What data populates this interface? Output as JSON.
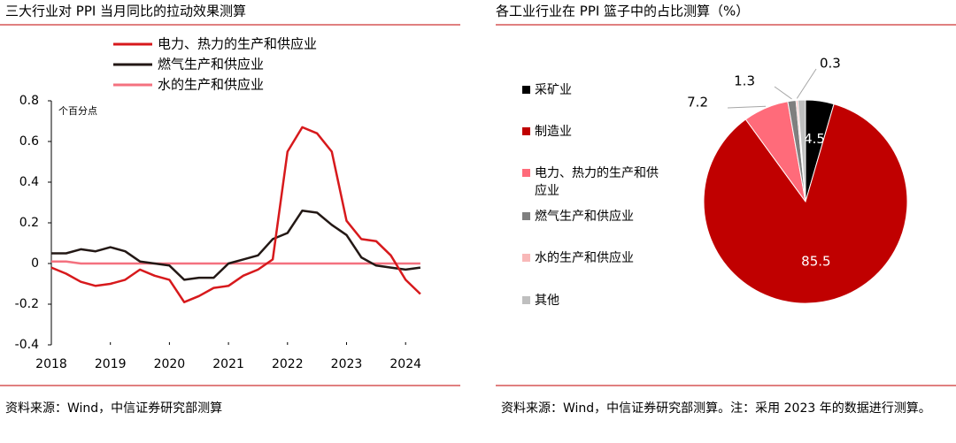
{
  "chart_data": [
    {
      "type": "line",
      "title": "三大行业对 PPI 当月同比的拉动效果测算",
      "annotation": "个百分点",
      "x": [
        2018,
        2018.25,
        2018.5,
        2018.75,
        2019,
        2019.25,
        2019.5,
        2019.75,
        2020,
        2020.25,
        2020.5,
        2020.75,
        2021,
        2021.25,
        2021.5,
        2021.75,
        2022,
        2022.25,
        2022.5,
        2022.75,
        2023,
        2023.25,
        2023.5,
        2023.75,
        2024,
        2024.25
      ],
      "series": [
        {
          "name": "电力、热力的生产和供应业",
          "color": "#d7191c",
          "values": [
            -0.02,
            -0.05,
            -0.09,
            -0.11,
            -0.1,
            -0.08,
            -0.03,
            -0.06,
            -0.08,
            -0.19,
            -0.16,
            -0.12,
            -0.11,
            -0.06,
            -0.03,
            0.02,
            0.55,
            0.67,
            0.64,
            0.55,
            0.21,
            0.12,
            0.11,
            0.04,
            -0.08,
            -0.15
          ]
        },
        {
          "name": "燃气生产和供应业",
          "color": "#231815",
          "values": [
            0.05,
            0.05,
            0.07,
            0.06,
            0.08,
            0.06,
            0.01,
            0,
            -0.01,
            -0.08,
            -0.07,
            -0.07,
            0,
            0.02,
            0.04,
            0.12,
            0.15,
            0.26,
            0.25,
            0.19,
            0.14,
            0.03,
            -0.01,
            -0.02,
            -0.03,
            -0.02
          ]
        },
        {
          "name": "水的生产和供应业",
          "color": "#f4717f",
          "values": [
            0.01,
            0.01,
            0,
            0,
            0,
            0,
            0,
            0,
            0,
            0,
            0,
            0,
            0,
            0,
            0,
            0,
            0,
            0,
            0,
            0,
            0,
            0,
            0,
            0,
            0,
            0
          ]
        }
      ],
      "xlim": [
        2018,
        2024.4
      ],
      "xticks": [
        2018,
        2019,
        2020,
        2021,
        2022,
        2023,
        2024
      ],
      "ylim": [
        -0.4,
        0.8
      ],
      "yticks": [
        -0.4,
        -0.2,
        0,
        0.2,
        0.4,
        0.6,
        0.8
      ],
      "source": "资料来源：Wind，中信证券研究部测算"
    },
    {
      "type": "pie",
      "title": "各工业行业在 PPI 篮子中的占比测算（%）",
      "categories": [
        "采矿业",
        "制造业",
        "电力、热力的生产和供应业",
        "燃气生产和供应业",
        "水的生产和供应业",
        "其他"
      ],
      "values": [
        4.5,
        85.5,
        7.2,
        1.3,
        0.3,
        1.2
      ],
      "colors": [
        "#000000",
        "#c00000",
        "#ff6b7a",
        "#7f7f7f",
        "#f8b8b8",
        "#bfbfbf"
      ],
      "source": "资料来源：Wind，中信证券研究部测算。注：采用 2023 年的数据进行测算。"
    }
  ]
}
